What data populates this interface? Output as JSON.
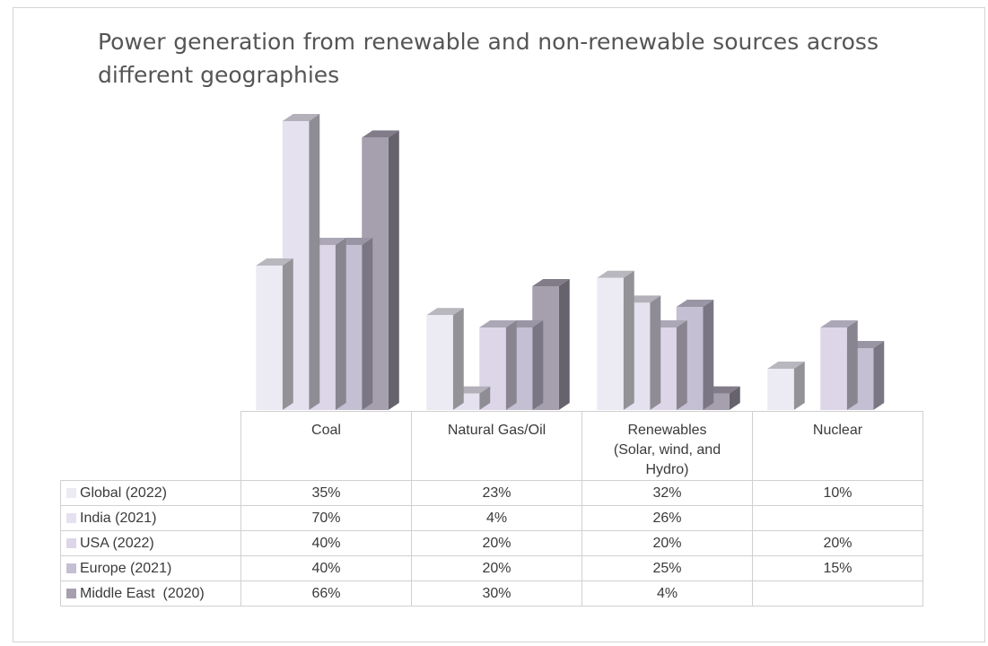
{
  "chart_data": {
    "type": "bar",
    "title": "Power generation from renewable and non-renewable sources across different geographies",
    "categories": [
      "Coal",
      "Natural Gas/Oil",
      "Renewables (Solar, wind, and Hydro)",
      "Nuclear"
    ],
    "category_lines": [
      [
        "Coal"
      ],
      [
        "Natural Gas/Oil"
      ],
      [
        "Renewables",
        "(Solar, wind, and",
        "Hydro)"
      ],
      [
        "Nuclear"
      ]
    ],
    "series": [
      {
        "name": "Global (2022)",
        "values": [
          35,
          23,
          32,
          10
        ],
        "labels": [
          "35%",
          "23%",
          "32%",
          "10%"
        ],
        "color": "#ecebf4"
      },
      {
        "name": "India (2021)",
        "values": [
          70,
          4,
          26,
          null
        ],
        "labels": [
          "70%",
          "4%",
          "26%",
          ""
        ],
        "color": "#e5e1ef"
      },
      {
        "name": "USA (2022)",
        "values": [
          40,
          20,
          20,
          20
        ],
        "labels": [
          "40%",
          "20%",
          "20%",
          "20%"
        ],
        "color": "#ddd6e9"
      },
      {
        "name": "Europe (2021)",
        "values": [
          40,
          20,
          25,
          15
        ],
        "labels": [
          "40%",
          "20%",
          "25%",
          "15%"
        ],
        "color": "#c5bfd3"
      },
      {
        "name": "Middle East  (2020)",
        "values": [
          66,
          30,
          4,
          null
        ],
        "labels": [
          "66%",
          "30%",
          "4%",
          ""
        ],
        "color": "#a59fae"
      }
    ],
    "ylim": [
      0,
      70
    ],
    "grid": false,
    "legend": "data-table",
    "style": "3d-column"
  }
}
